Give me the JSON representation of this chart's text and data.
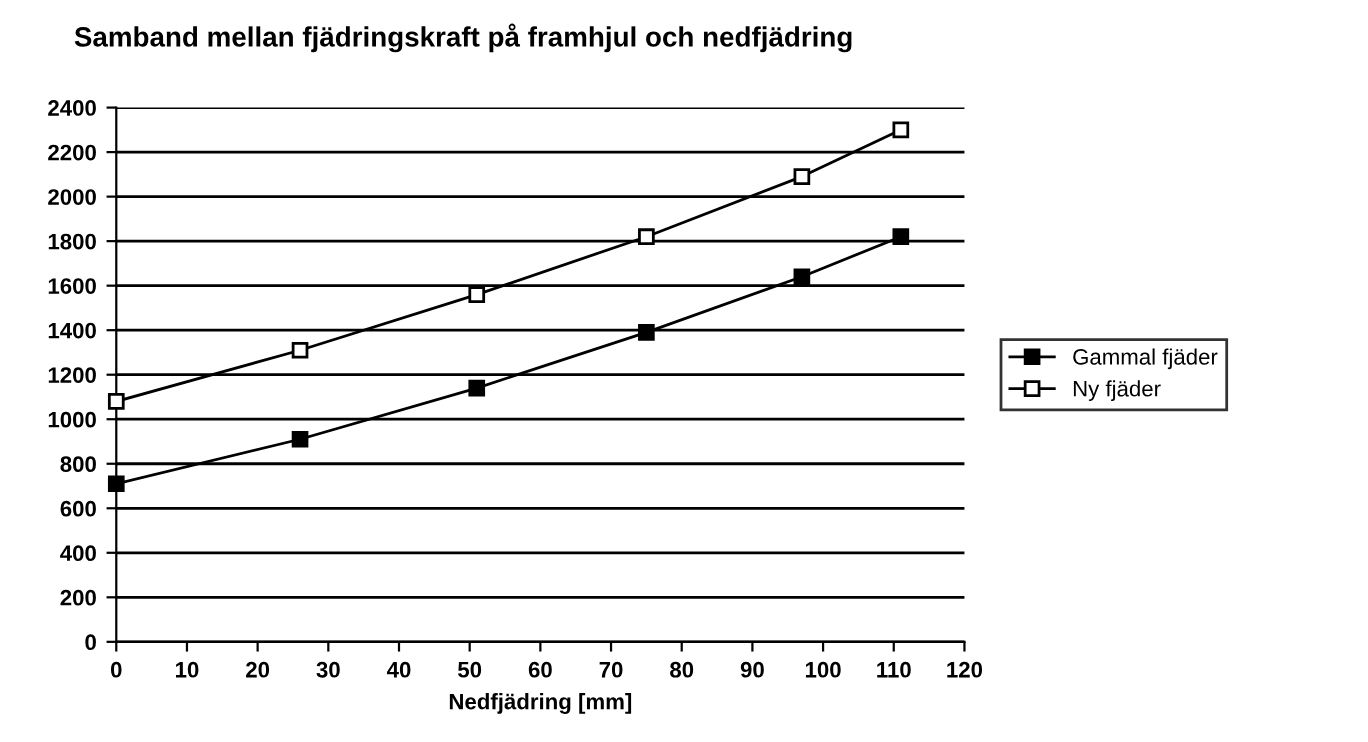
{
  "chart_data": {
    "type": "line",
    "title": "Samband mellan fjädringskraft på framhjul och nedfjädring",
    "xlabel": "Nedfjädring [mm]",
    "x": [
      0,
      26,
      51,
      75,
      97,
      111
    ],
    "series": [
      {
        "name": "Gammal fjäder",
        "color": "#000000",
        "values": [
          710,
          910,
          1140,
          1390,
          1640,
          1820
        ]
      },
      {
        "name": "Ny fjäder",
        "color": "#000000",
        "values": [
          1080,
          1310,
          1560,
          1820,
          2090,
          2300
        ]
      }
    ],
    "xlim": [
      0,
      120
    ],
    "xticks": [
      0,
      10,
      20,
      30,
      40,
      50,
      60,
      70,
      80,
      90,
      100,
      110,
      120
    ],
    "ylim": [
      0,
      2400
    ],
    "yticks": [
      0,
      200,
      400,
      600,
      800,
      1000,
      1200,
      1400,
      1600,
      1800,
      2000,
      2200,
      2400
    ],
    "grid": "y",
    "legend": "right",
    "marker": "square",
    "line_style": "solid"
  }
}
